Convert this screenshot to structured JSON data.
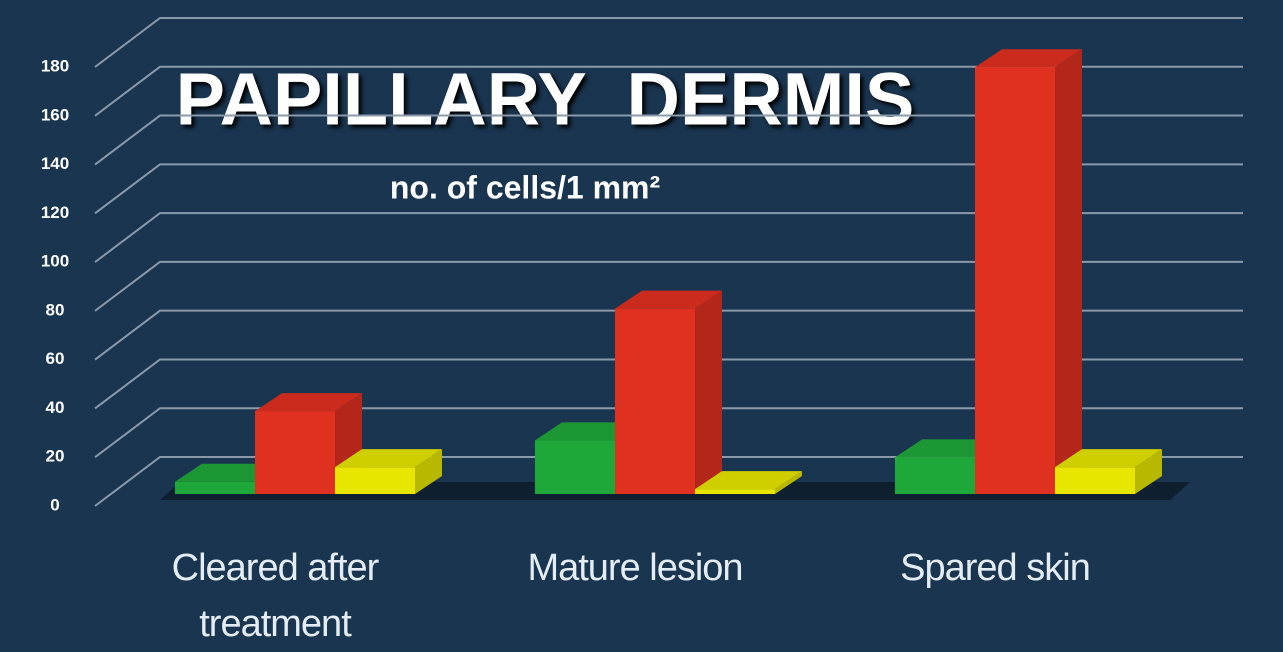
{
  "chart_data": {
    "type": "bar3d",
    "title": "PAPILLARY  DERMIS",
    "subtitle": "no. of cells/1 mm²",
    "categories": [
      "Cleared after treatment",
      "Mature lesion",
      "Spared skin"
    ],
    "series": [
      {
        "color": "#1fa83a",
        "values": [
          5,
          22,
          15
        ]
      },
      {
        "color": "#e03020",
        "values": [
          34,
          76,
          175
        ]
      },
      {
        "color": "#e6e600",
        "values": [
          11,
          2,
          11
        ]
      }
    ],
    "ylim": [
      0,
      180
    ],
    "yticks": [
      0,
      20,
      40,
      60,
      80,
      100,
      120,
      140,
      160,
      180
    ],
    "grid": true
  }
}
